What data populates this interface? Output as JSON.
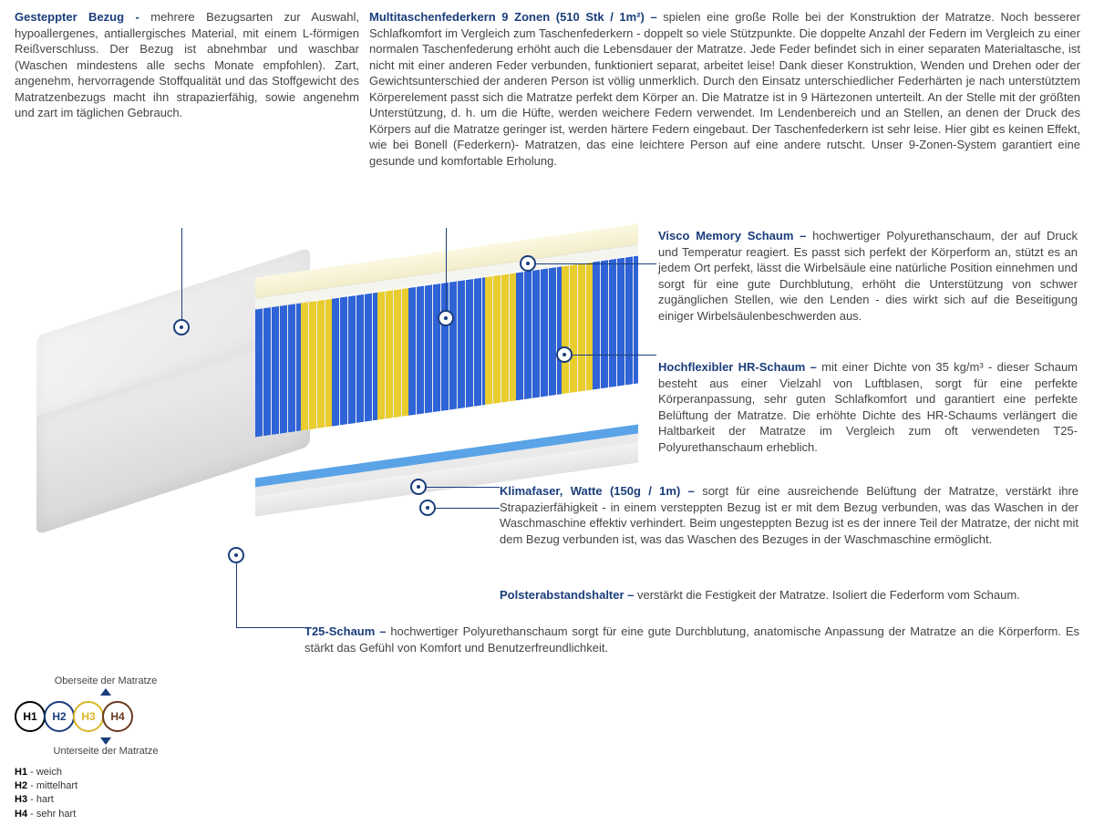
{
  "colors": {
    "title": "#1a3d7c",
    "text": "#444444",
    "spring_blue": "#2f63d6",
    "spring_yellow": "#e9cc2e",
    "visco": "#f6f1cf",
    "klima": "#5aa3e6",
    "cover": "#ececec",
    "bg": "#ffffff"
  },
  "top_left": {
    "title": "Gesteppter Bezug - ",
    "text": "mehrere Bezugsarten zur Auswahl, hypoallergenes, antiallergisches Material, mit einem L-förmigen Reißverschluss. Der Bezug ist abnehmbar und waschbar (Waschen mindestens alle sechs Monate empfohlen). Zart, angenehm, hervorragende Stoffqualität und das Stoffgewicht des Matratzenbezugs macht ihn strapazierfähig, sowie angenehm und zart im täglichen Gebrauch."
  },
  "top_right": {
    "title": "Multitaschenfederkern 9 Zonen (510 Stk / 1m²) – ",
    "text": "spielen eine große Rolle bei der Konstruktion der Matratze. Noch besserer Schlafkomfort im Vergleich zum Taschenfederkern - doppelt so viele Stützpunkte. Die doppelte Anzahl der Federn im Vergleich zu einer normalen Taschenfederung erhöht auch die Lebensdauer der Matratze. Jede Feder befindet sich in einer separaten Materialtasche, ist nicht mit einer anderen Feder verbunden, funktioniert separat, arbeitet leise! Dank dieser Konstruktion, Wenden und Drehen oder der Gewichtsunterschied der anderen Person ist völlig unmerklich. Durch den Einsatz unterschiedlicher Federhärten je nach unterstütztem Körperelement passt sich die Matratze perfekt dem Körper an. Die Matratze ist in 9 Härtezonen unterteilt. An der Stelle mit der größten Unterstützung, d. h. um die Hüfte, werden weichere Federn verwendet. Im Lendenbereich und an Stellen, an denen der Druck des Körpers auf die Matratze geringer ist, werden härtere Federn eingebaut. Der Taschenfederkern ist sehr leise. Hier gibt es keinen Effekt, wie bei Bonell (Federkern)- Matratzen, das eine leichtere Person auf eine andere rutscht. Unser 9-Zonen-System garantiert eine gesunde und komfortable Erholung."
  },
  "layers": {
    "visco": {
      "title": "Visco Memory Schaum – ",
      "text": "hochwertiger Polyurethanschaum, der auf Druck und Temperatur reagiert. Es passt sich perfekt der Körperform an, stützt es an jedem Ort perfekt, lässt die Wirbelsäule eine natürliche Position einnehmen und sorgt für eine gute Durchblutung, erhöht die Unterstützung von schwer zugänglichen Stellen, wie den Lenden - dies wirkt sich auf die Beseitigung einiger Wirbelsäulenbeschwerden aus."
    },
    "hr": {
      "title": "Hochflexibler HR-Schaum – ",
      "text": "mit einer Dichte von 35 kg/m³ - dieser Schaum besteht aus einer Vielzahl von Luftblasen, sorgt für eine perfekte Körperanpassung, sehr guten Schlafkomfort und garantiert eine perfekte Belüftung der Matratze. Die erhöhte Dichte des HR-Schaums verlängert die Haltbarkeit der Matratze im Vergleich zum oft verwendeten T25-Polyurethanschaum erheblich."
    },
    "klima": {
      "title": "Klimafaser, Watte (150g / 1m) – ",
      "text": "sorgt für eine ausreichende Belüftung der Matratze, verstärkt ihre Strapazierfähigkeit - in einem versteppten Bezug ist er mit dem Bezug verbunden, was das Waschen in der Waschmaschine effektiv verhindert. Beim ungesteppten Bezug ist es der innere Teil der Matratze, der nicht mit dem Bezug verbunden ist, was das Waschen des Bezuges in der Waschmaschine ermöglicht."
    },
    "polster": {
      "title": "Polsterabstandshalter – ",
      "text": "verstärkt die Festigkeit der Matratze. Isoliert die Federform vom Schaum."
    },
    "t25": {
      "title": "T25-Schaum – ",
      "text": "hochwertiger Polyurethanschaum sorgt für eine gute Durchblutung, anatomische Anpassung der Matratze an die Körperform. Es stärkt das Gefühl von Komfort und Benutzerfreundlichkeit."
    }
  },
  "springs": {
    "zones": [
      {
        "color": "#2f63d6",
        "w": 12
      },
      {
        "color": "#e9cc2e",
        "w": 8
      },
      {
        "color": "#2f63d6",
        "w": 12
      },
      {
        "color": "#e9cc2e",
        "w": 8
      },
      {
        "color": "#2f63d6",
        "w": 20
      },
      {
        "color": "#e9cc2e",
        "w": 8
      },
      {
        "color": "#2f63d6",
        "w": 12
      },
      {
        "color": "#e9cc2e",
        "w": 8
      },
      {
        "color": "#2f63d6",
        "w": 12
      }
    ]
  },
  "legend": {
    "top_label": "Oberseite der Matratze",
    "bottom_label": "Unterseite der Matratze",
    "circles": [
      {
        "label": "H1",
        "color": "#000000"
      },
      {
        "label": "H2",
        "color": "#1a3d7c"
      },
      {
        "label": "H3",
        "color": "#d9b72a"
      },
      {
        "label": "H4",
        "color": "#6b3a1e"
      }
    ],
    "items": [
      {
        "k": "H1",
        "v": " - weich"
      },
      {
        "k": "H2",
        "v": " - mittelhart"
      },
      {
        "k": "H3",
        "v": " - hart"
      },
      {
        "k": "H4",
        "v": " - sehr hart"
      }
    ]
  }
}
